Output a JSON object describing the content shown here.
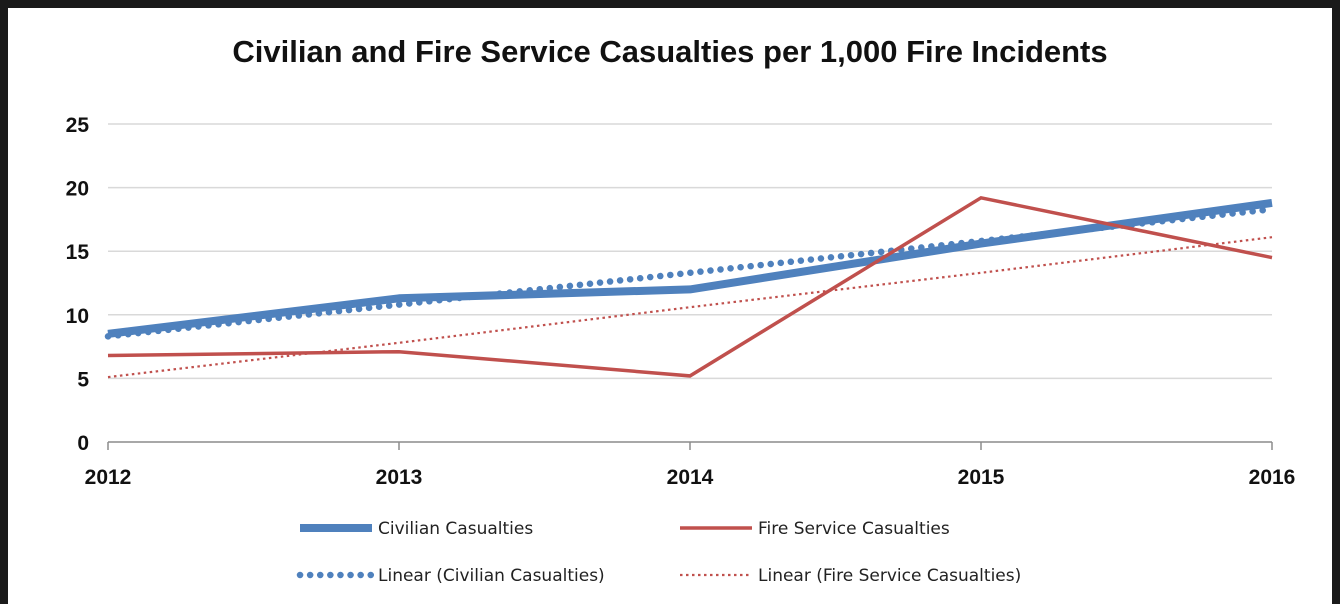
{
  "chart_data": {
    "type": "line",
    "title": "Civilian and Fire Service Casualties per 1,000 Fire Incidents",
    "xlabel": "",
    "ylabel": "",
    "categories": [
      "2012",
      "2013",
      "2014",
      "2015",
      "2016"
    ],
    "ylim": [
      0,
      25
    ],
    "yticks": [
      0,
      5,
      10,
      15,
      20,
      25
    ],
    "grid": "horizontal",
    "legend_position": "bottom",
    "series": [
      {
        "name": "Civilian Casualties",
        "values": [
          8.5,
          11.3,
          12.0,
          15.6,
          18.8
        ],
        "color": "#4f81bd",
        "style": "solid-thick"
      },
      {
        "name": "Fire Service Casualties",
        "values": [
          6.8,
          7.1,
          5.2,
          19.2,
          14.5
        ],
        "color": "#c0504d",
        "style": "solid"
      },
      {
        "name": "Linear (Civilian Casualties)",
        "values": [
          8.3,
          10.8,
          13.3,
          15.8,
          18.3
        ],
        "color": "#4f81bd",
        "style": "dotted-round"
      },
      {
        "name": "Linear (Fire Service Casualties)",
        "values": [
          5.1,
          7.8,
          10.6,
          13.3,
          16.1
        ],
        "color": "#c0504d",
        "style": "dotted-thin"
      }
    ]
  }
}
